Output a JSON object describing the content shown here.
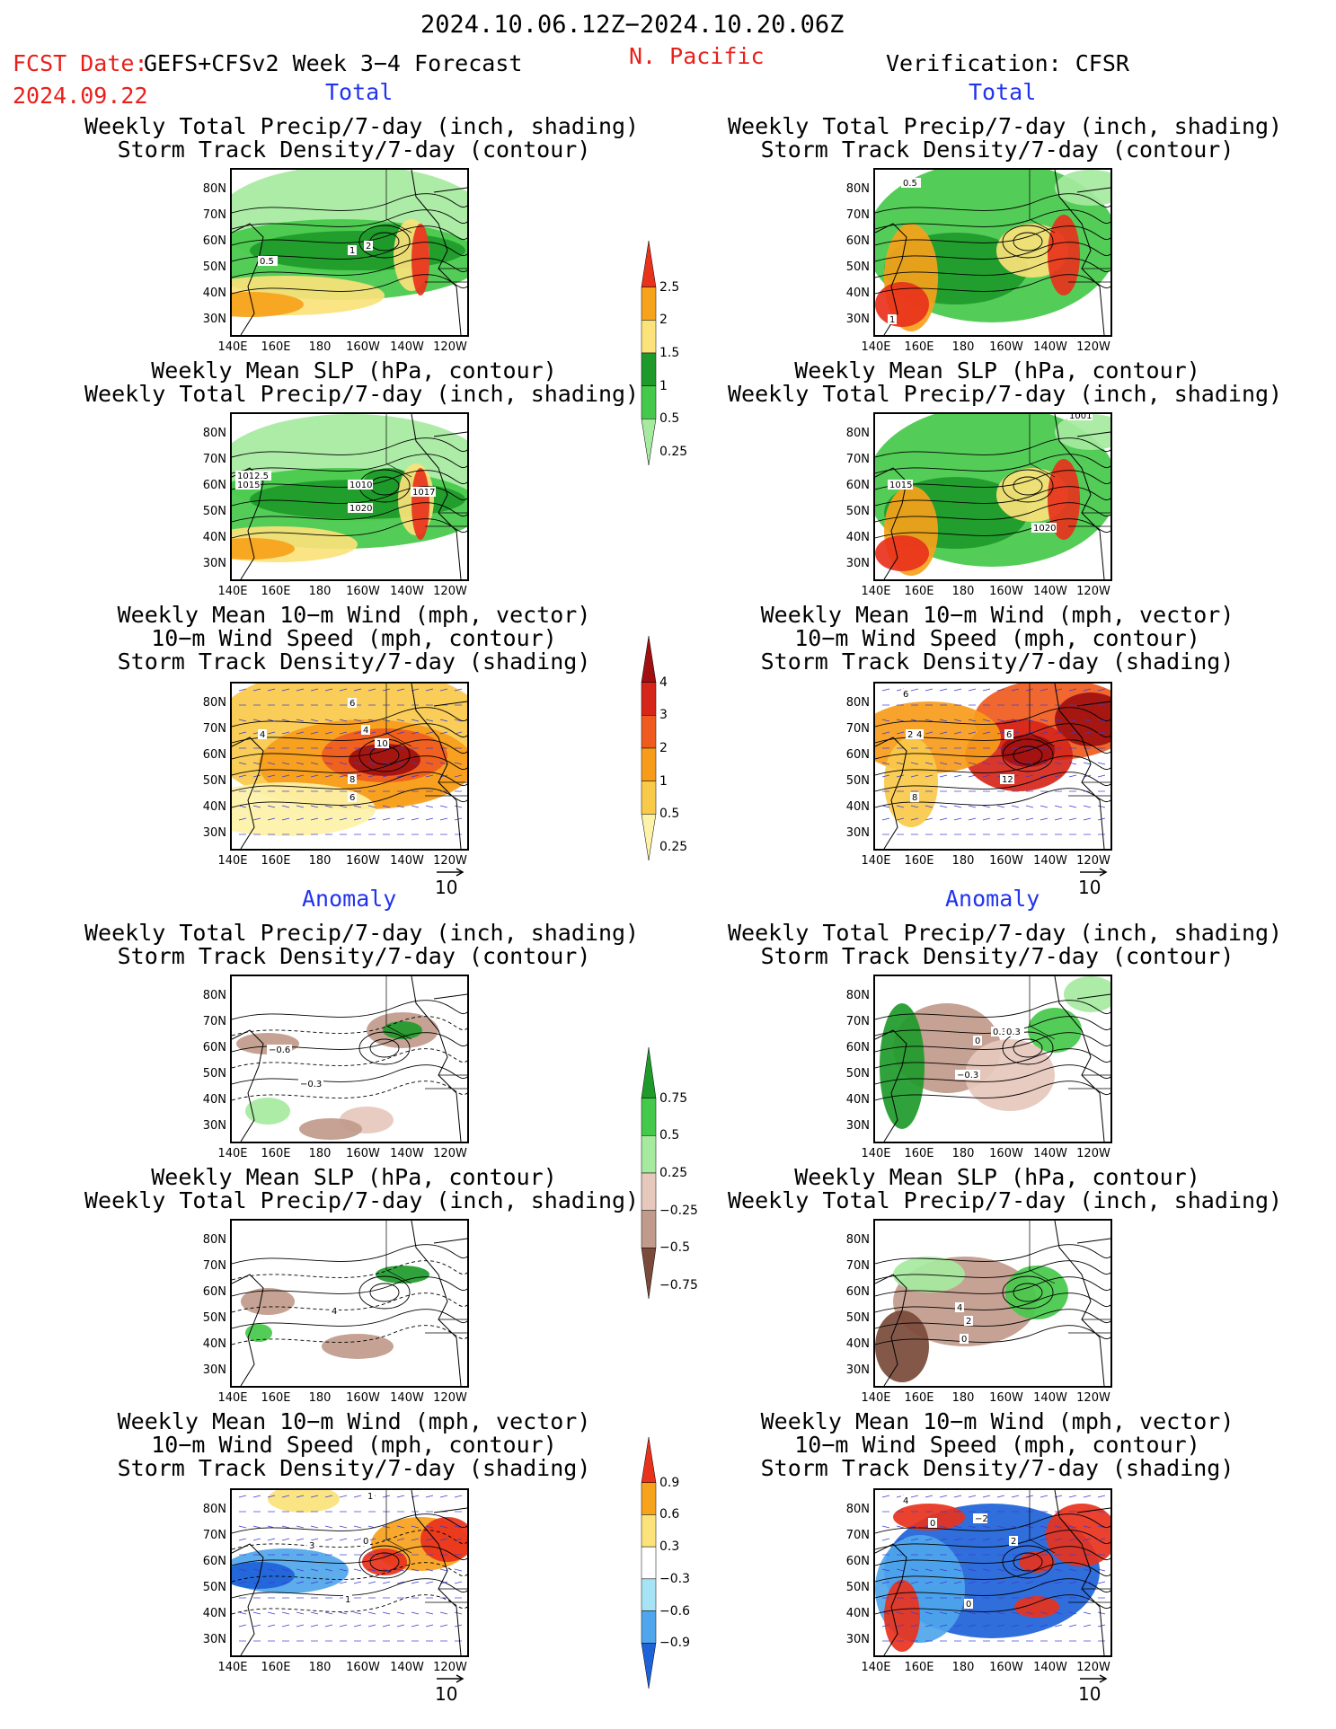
{
  "header": {
    "period": "2024.10.06.12Z−2024.10.20.06Z",
    "fcst_label": "FCST Date:",
    "fcst_date": "2024.09.22",
    "model": "GEFS+CFSv2 Week 3−4 Forecast",
    "region": "N. Pacific",
    "verification": "Verification: CFSR"
  },
  "sections": {
    "total": "Total",
    "anomaly": "Anomaly"
  },
  "titles": {
    "precip_storm": [
      "Weekly Total Precip/7-day (inch, shading)",
      "Storm Track Density/7-day (contour)"
    ],
    "slp_precip": [
      "Weekly Mean SLP (hPa, contour)",
      "Weekly Total Precip/7-day (inch, shading)"
    ],
    "wind_storm": [
      "Weekly Mean 10−m Wind (mph, vector)",
      "10−m Wind Speed (mph, contour)",
      "Storm Track Density/7-day (shading)"
    ]
  },
  "axes": {
    "lat_labels": [
      "80N",
      "70N",
      "60N",
      "50N",
      "40N",
      "30N"
    ],
    "lon_labels": [
      "140E",
      "160E",
      "180",
      "160W",
      "140W",
      "120W"
    ]
  },
  "vector_reference": "10",
  "colorbars": {
    "precip_total": {
      "labels": [
        "2.5",
        "2",
        "1.5",
        "1",
        "0.5",
        "0.25"
      ],
      "colors": [
        "#e8321c",
        "#f7a21b",
        "#fbe27a",
        "#1e9a2a",
        "#45c94a",
        "#a6eaa0"
      ]
    },
    "storm_total": {
      "labels": [
        "4",
        "3",
        "2",
        "1",
        "0.5",
        "0.25"
      ],
      "colors": [
        "#a01010",
        "#d6261a",
        "#ef5a1e",
        "#f79c1a",
        "#f9c94a",
        "#fdf2a8"
      ]
    },
    "precip_anom": {
      "labels": [
        "0.75",
        "0.5",
        "0.25",
        "−0.25",
        "−0.5",
        "−0.75"
      ],
      "colors": [
        "#1e9a2a",
        "#45c94a",
        "#a6eaa0",
        "#e6c8bc",
        "#c09a8a",
        "#7a4a3a"
      ]
    },
    "storm_anom": {
      "labels": [
        "0.9",
        "0.6",
        "0.3",
        "−0.3",
        "−0.6",
        "−0.9"
      ],
      "colors": [
        "#e8321c",
        "#f7a21b",
        "#fbe27a",
        "#ffffff",
        "#a6e4f5",
        "#4fa6ec",
        "#1e62d8"
      ]
    }
  },
  "contour_labels": {
    "p1": [
      "0.5",
      "1",
      "2"
    ],
    "p2": [
      "1012.5",
      "1015",
      "1010",
      "1020",
      "1017"
    ],
    "p3": [
      "6",
      "4",
      "4",
      "10",
      "8",
      "6"
    ],
    "p4": [
      "0.5",
      "1"
    ],
    "p5": [
      "1015",
      "1020",
      "1001"
    ],
    "p6": [
      "6",
      "2",
      "4",
      "6",
      "12",
      "8"
    ],
    "p7": [
      "−0.6",
      "−0.3"
    ],
    "p8": [
      "4"
    ],
    "p9": [
      "3",
      "1",
      "1",
      "0"
    ],
    "p10": [
      "0.3",
      "0.3",
      "−0.3",
      "0"
    ],
    "p11": [
      "4",
      "2",
      "0"
    ],
    "p12": [
      "4",
      "−2",
      "0",
      "2",
      "0"
    ]
  }
}
